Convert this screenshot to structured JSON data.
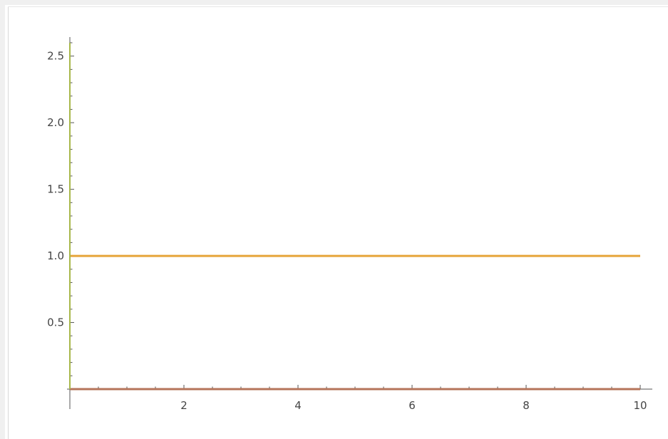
{
  "chart_data": {
    "type": "line",
    "title": "",
    "xlabel": "",
    "ylabel": "",
    "xlim": [
      0,
      10
    ],
    "ylim": [
      0,
      2.6
    ],
    "x_ticks": [
      2,
      4,
      6,
      8,
      10
    ],
    "y_ticks": [
      0.5,
      1.0,
      1.5,
      2.0,
      2.5
    ],
    "x_tick_labels": [
      "2",
      "4",
      "6",
      "8",
      "10"
    ],
    "y_tick_labels": [
      "0.5",
      "1.0",
      "1.5",
      "2.0",
      "2.5"
    ],
    "grid": false,
    "legend": "none",
    "series": [
      {
        "x": [
          0,
          10
        ],
        "y": [
          1,
          1
        ],
        "color": "#e6a53a"
      },
      {
        "x": [
          0,
          10
        ],
        "y": [
          0,
          0
        ],
        "color": "#b5745a"
      },
      {
        "x": [
          0,
          0
        ],
        "y": [
          0,
          2.6
        ],
        "color": "#a8b84a"
      }
    ]
  }
}
